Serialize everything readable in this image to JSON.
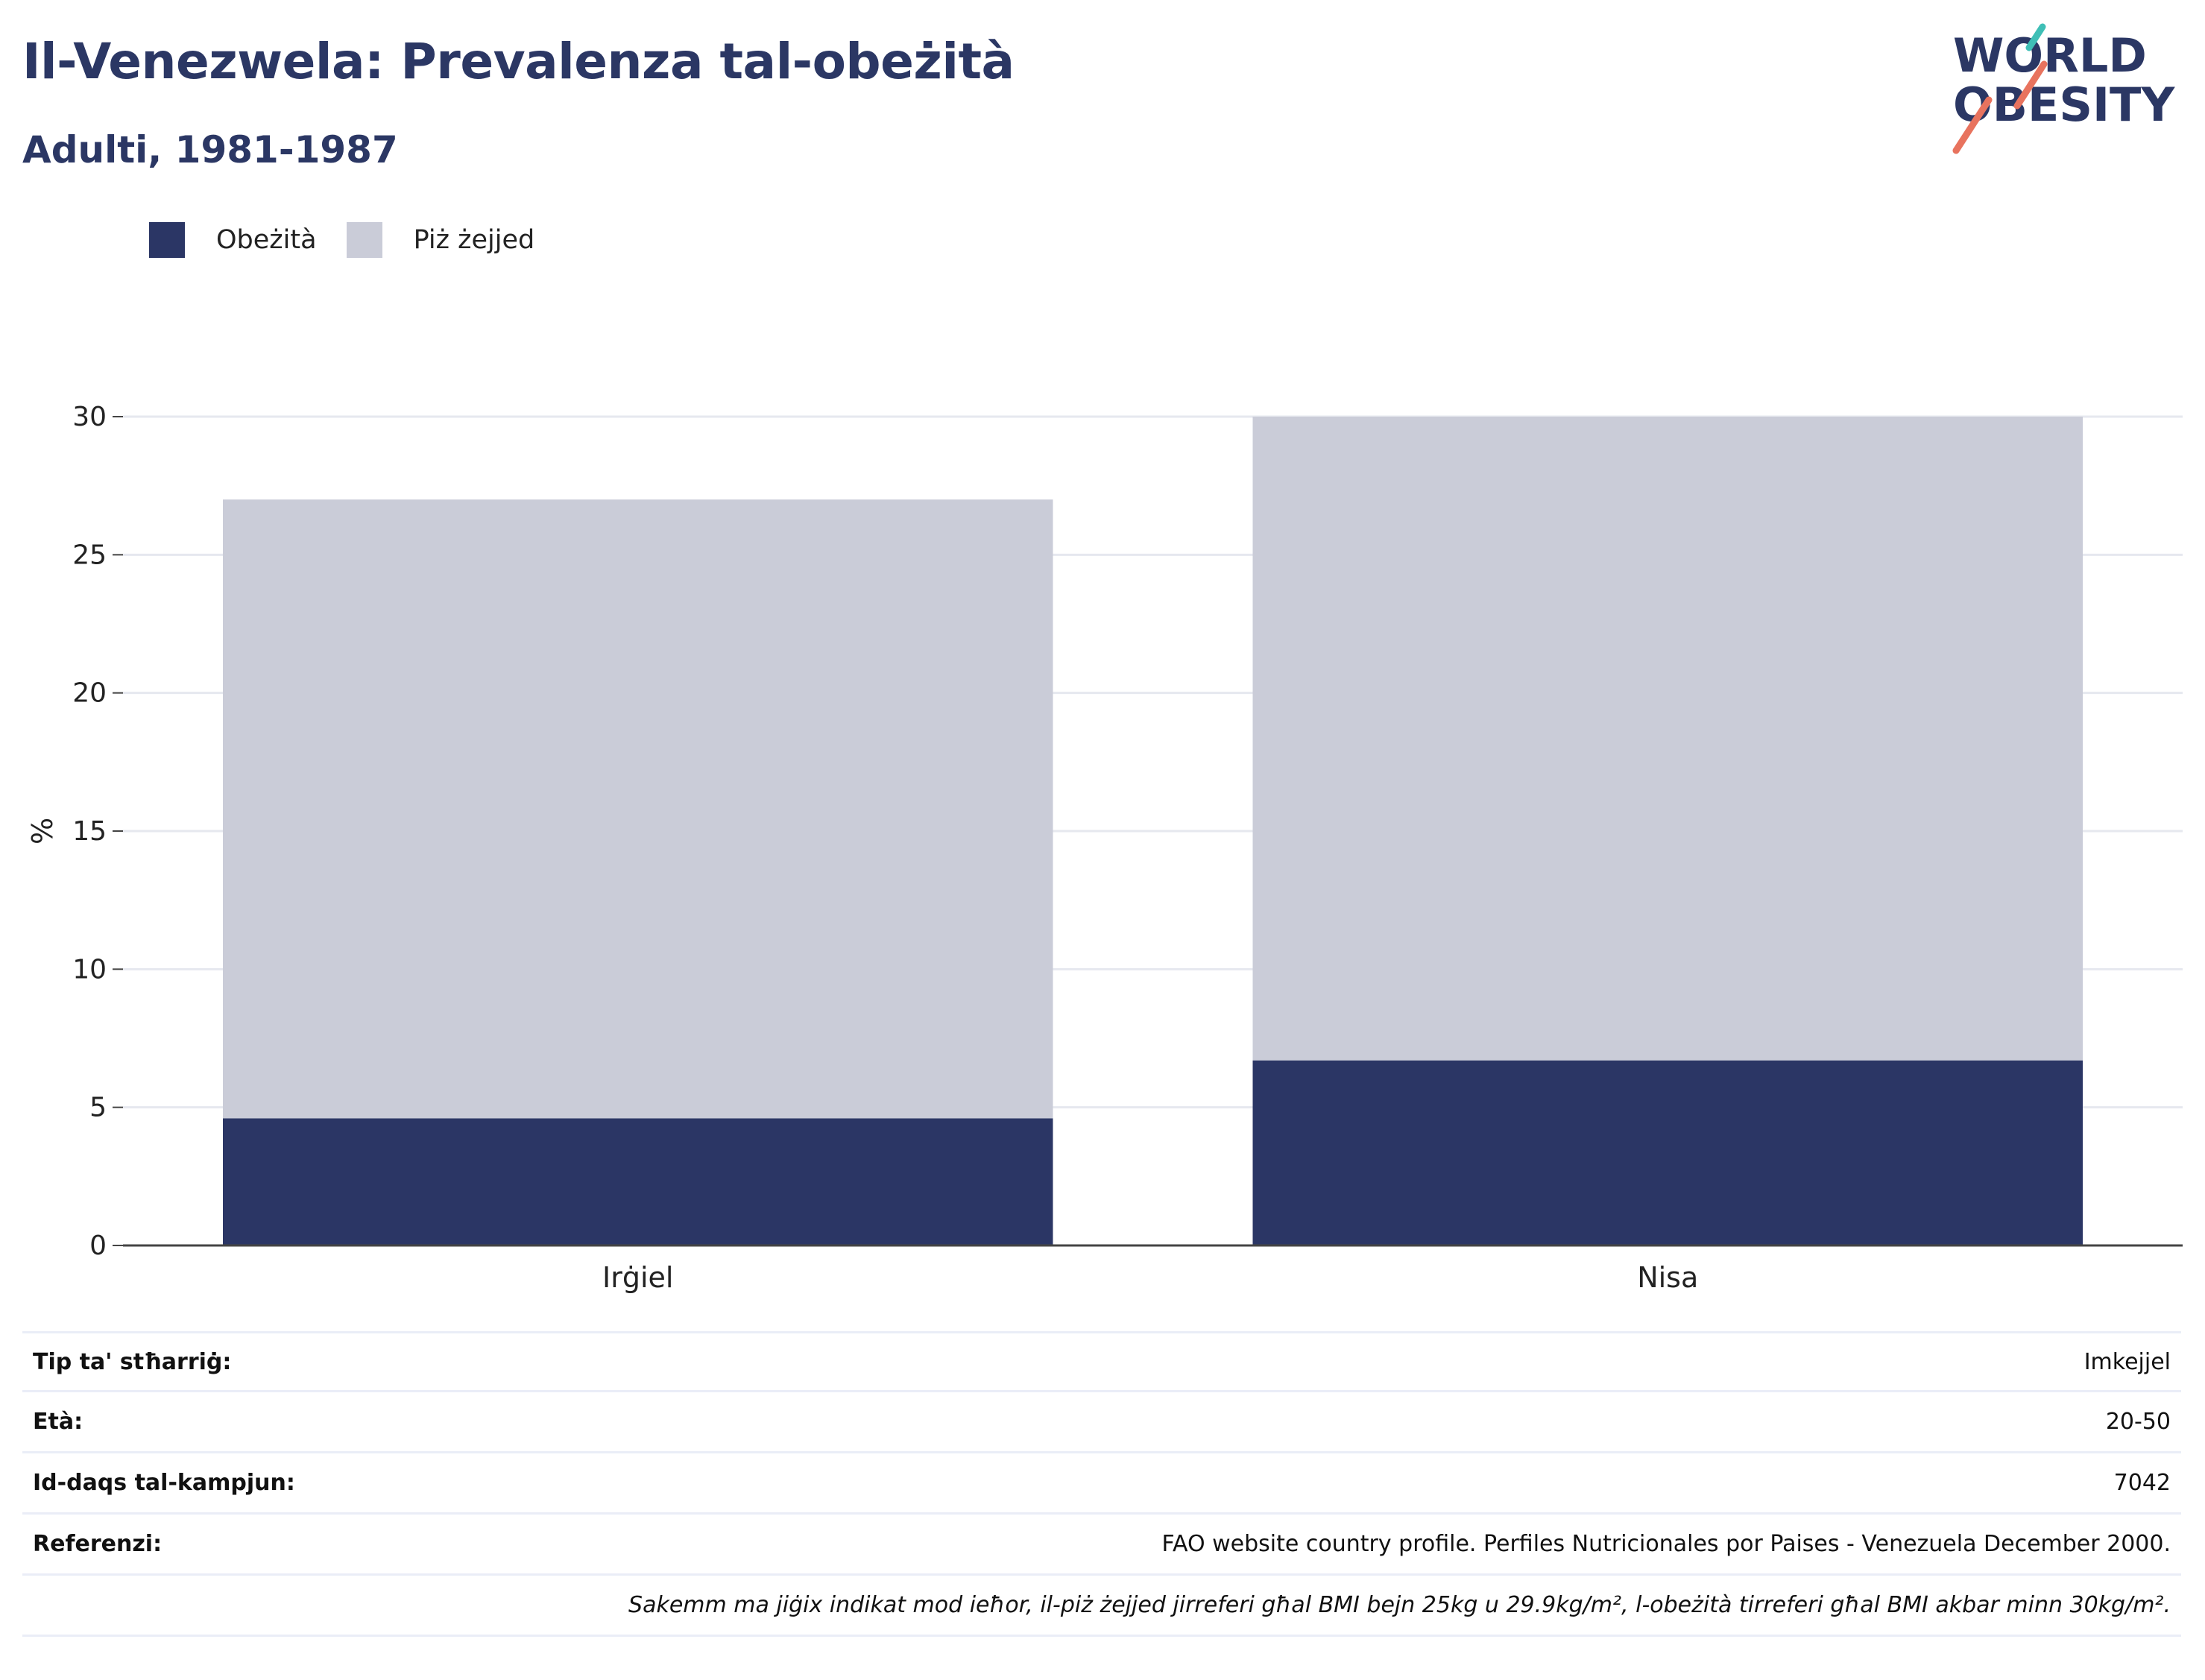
{
  "header": {
    "title": "Il-Venezwela: Prevalenza tal-obeżità",
    "subtitle": "Adulti, 1981-1987"
  },
  "logo": {
    "line1": "WORLD",
    "line2": "OBESITY"
  },
  "legend": [
    {
      "label": "Obeżità",
      "color": "#2b3665"
    },
    {
      "label": "Piż żejjed",
      "color": "#caccd8"
    }
  ],
  "chart_data": {
    "type": "bar",
    "stacked": true,
    "categories": [
      "Irġiel",
      "Nisa"
    ],
    "series": [
      {
        "name": "Obeżità",
        "values": [
          4.6,
          6.7
        ],
        "color": "#2b3665"
      },
      {
        "name": "Piż żejjed",
        "values": [
          22.4,
          23.3
        ],
        "color": "#caccd8"
      }
    ],
    "ylabel": "%",
    "ylim": [
      0,
      30
    ],
    "yticks": [
      0,
      5,
      10,
      15,
      20,
      25,
      30
    ],
    "grid": true
  },
  "info": {
    "rows": [
      {
        "key": "Tip ta' stħarriġ:",
        "value": "Imkejjel"
      },
      {
        "key": "Età:",
        "value": "20-50"
      },
      {
        "key": "Id-daqs tal-kampjun:",
        "value": "7042"
      },
      {
        "key": "Referenzi:",
        "value": "FAO website country profile. Perfiles Nutricionales por Paises - Venezuela December 2000."
      }
    ],
    "note": "Sakemm ma jiġix indikat mod ieħor, il-piż żejjed jirreferi għal BMI bejn 25kg u 29.9kg/m², l-obeżità tirreferi għal BMI akbar minn 30kg/m²."
  }
}
